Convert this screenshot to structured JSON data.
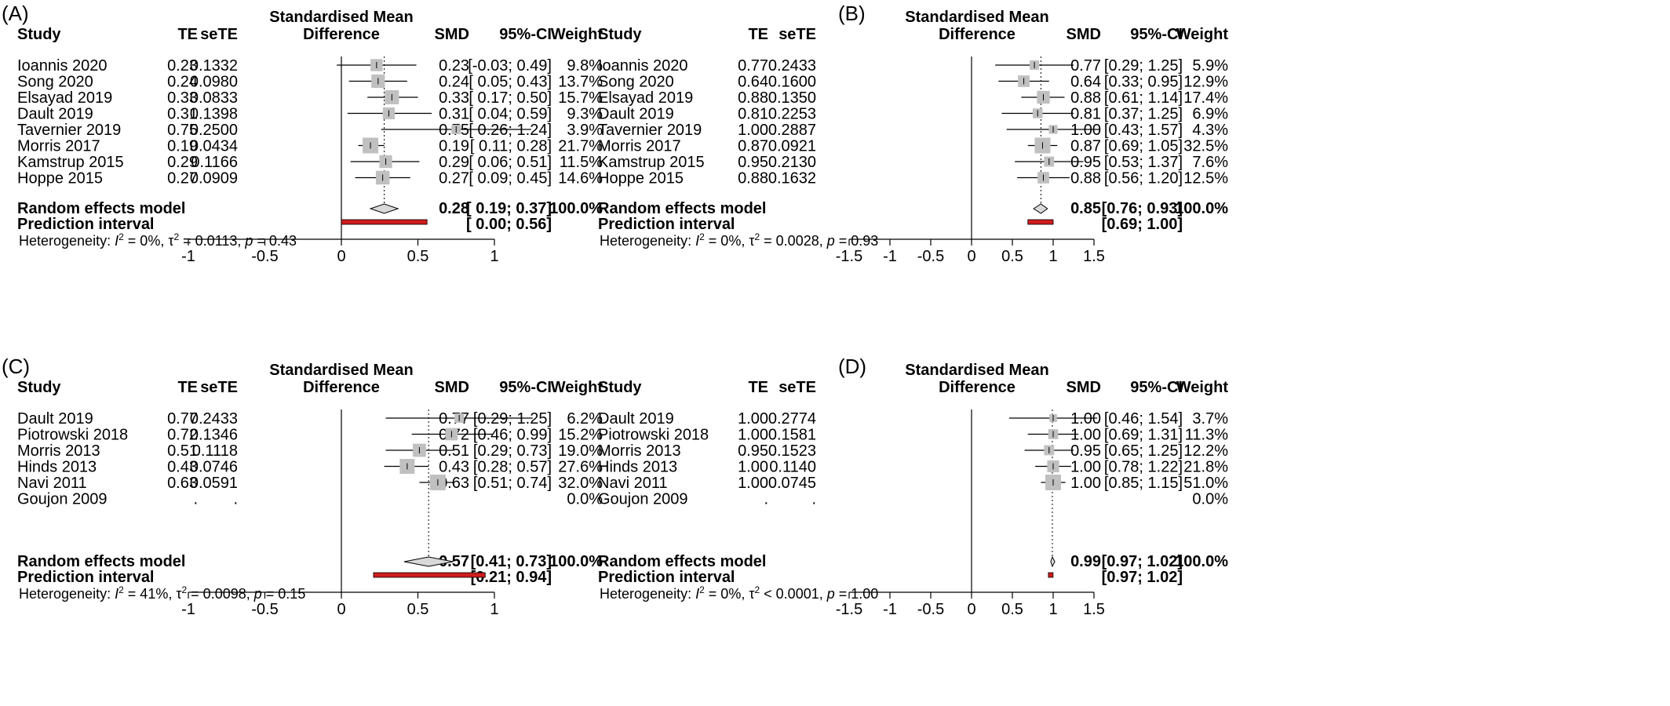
{
  "chart_data": [
    {
      "type": "forest",
      "panel_label": "(A)",
      "columns": {
        "study": "Study",
        "te": "TE",
        "sete": "seTE",
        "plot_title_1": "Standardised Mean",
        "plot_title_2": "Difference",
        "smd": "SMD",
        "ci": "95%-CI",
        "weight": "Weight"
      },
      "studies": [
        {
          "name": "Ioannis 2020",
          "te": "0.23",
          "sete": "0.1332",
          "smd": "0.23",
          "ci_text": "[-0.03; 0.49]",
          "weight": "9.8%",
          "est": 0.23,
          "lo": -0.03,
          "hi": 0.49,
          "w": 9.8
        },
        {
          "name": "Song 2020",
          "te": "0.24",
          "sete": "0.0980",
          "smd": "0.24",
          "ci_text": "[ 0.05; 0.43]",
          "weight": "13.7%",
          "est": 0.24,
          "lo": 0.05,
          "hi": 0.43,
          "w": 13.7
        },
        {
          "name": "Elsayad 2019",
          "te": "0.33",
          "sete": "0.0833",
          "smd": "0.33",
          "ci_text": "[ 0.17; 0.50]",
          "weight": "15.7%",
          "est": 0.33,
          "lo": 0.17,
          "hi": 0.5,
          "w": 15.7
        },
        {
          "name": "Dault 2019",
          "te": "0.31",
          "sete": "0.1398",
          "smd": "0.31",
          "ci_text": "[ 0.04; 0.59]",
          "weight": "9.3%",
          "est": 0.31,
          "lo": 0.04,
          "hi": 0.59,
          "w": 9.3
        },
        {
          "name": "Tavernier 2019",
          "te": "0.75",
          "sete": "0.2500",
          "smd": "0.75",
          "ci_text": "[ 0.26; 1.24]",
          "weight": "3.9%",
          "est": 0.75,
          "lo": 0.26,
          "hi": 1.24,
          "w": 3.9
        },
        {
          "name": "Morris 2017",
          "te": "0.19",
          "sete": "0.0434",
          "smd": "0.19",
          "ci_text": "[ 0.11; 0.28]",
          "weight": "21.7%",
          "est": 0.19,
          "lo": 0.11,
          "hi": 0.28,
          "w": 21.7
        },
        {
          "name": "Kamstrup 2015",
          "te": "0.29",
          "sete": "0.1166",
          "smd": "0.29",
          "ci_text": "[ 0.06; 0.51]",
          "weight": "11.5%",
          "est": 0.29,
          "lo": 0.06,
          "hi": 0.51,
          "w": 11.5
        },
        {
          "name": "Hoppe 2015",
          "te": "0.27",
          "sete": "0.0909",
          "smd": "0.27",
          "ci_text": "[ 0.09; 0.45]",
          "weight": "14.6%",
          "est": 0.27,
          "lo": 0.09,
          "hi": 0.45,
          "w": 14.6
        }
      ],
      "pooled": {
        "label": "Random effects model",
        "smd": "0.28",
        "ci_text": "[ 0.19; 0.37]",
        "weight": "100.0%",
        "est": 0.28,
        "lo": 0.19,
        "hi": 0.37
      },
      "prediction": {
        "label": "Prediction interval",
        "ci_text": "[ 0.00; 0.56]",
        "lo": 0.0,
        "hi": 0.56
      },
      "heterogeneity": {
        "prefix": "Heterogeneity: ",
        "i2": "= 0%, ",
        "tau2": "= 0.0113, ",
        "p": "= 0.43"
      },
      "xlim": [
        -1,
        1
      ],
      "ticks": [
        -1,
        -0.5,
        0,
        0.5,
        1
      ],
      "tick_labels": [
        "-1",
        "-0.5",
        "0",
        "0.5",
        "1"
      ]
    },
    {
      "type": "forest",
      "panel_label": "(B)",
      "columns": {
        "study": "Study",
        "te": "TE",
        "sete": "seTE",
        "plot_title_1": "Standardised Mean",
        "plot_title_2": "Difference",
        "smd": "SMD",
        "ci": "95%-CI",
        "weight": "Weight"
      },
      "studies": [
        {
          "name": "Ioannis 2020",
          "te": "0.77",
          "sete": "0.2433",
          "smd": "0.77",
          "ci_text": "[0.29; 1.25]",
          "weight": "5.9%",
          "est": 0.77,
          "lo": 0.29,
          "hi": 1.25,
          "w": 5.9
        },
        {
          "name": "Song 2020",
          "te": "0.64",
          "sete": "0.1600",
          "smd": "0.64",
          "ci_text": "[0.33; 0.95]",
          "weight": "12.9%",
          "est": 0.64,
          "lo": 0.33,
          "hi": 0.95,
          "w": 12.9
        },
        {
          "name": "Elsayad 2019",
          "te": "0.88",
          "sete": "0.1350",
          "smd": "0.88",
          "ci_text": "[0.61; 1.14]",
          "weight": "17.4%",
          "est": 0.88,
          "lo": 0.61,
          "hi": 1.14,
          "w": 17.4
        },
        {
          "name": "Dault 2019",
          "te": "0.81",
          "sete": "0.2253",
          "smd": "0.81",
          "ci_text": "[0.37; 1.25]",
          "weight": "6.9%",
          "est": 0.81,
          "lo": 0.37,
          "hi": 1.25,
          "w": 6.9
        },
        {
          "name": "Tavernier 2019",
          "te": "1.00",
          "sete": "0.2887",
          "smd": "1.00",
          "ci_text": "[0.43; 1.57]",
          "weight": "4.3%",
          "est": 1.0,
          "lo": 0.43,
          "hi": 1.57,
          "w": 4.3
        },
        {
          "name": "Morris 2017",
          "te": "0.87",
          "sete": "0.0921",
          "smd": "0.87",
          "ci_text": "[0.69; 1.05]",
          "weight": "32.5%",
          "est": 0.87,
          "lo": 0.69,
          "hi": 1.05,
          "w": 32.5
        },
        {
          "name": "Kamstrup 2015",
          "te": "0.95",
          "sete": "0.2130",
          "smd": "0.95",
          "ci_text": "[0.53; 1.37]",
          "weight": "7.6%",
          "est": 0.95,
          "lo": 0.53,
          "hi": 1.37,
          "w": 7.6
        },
        {
          "name": "Hoppe 2015",
          "te": "0.88",
          "sete": "0.1632",
          "smd": "0.88",
          "ci_text": "[0.56; 1.20]",
          "weight": "12.5%",
          "est": 0.88,
          "lo": 0.56,
          "hi": 1.2,
          "w": 12.5
        }
      ],
      "pooled": {
        "label": "Random effects model",
        "smd": "0.85",
        "ci_text": "[0.76; 0.93]",
        "weight": "100.0%",
        "est": 0.85,
        "lo": 0.76,
        "hi": 0.93
      },
      "prediction": {
        "label": "Prediction interval",
        "ci_text": "[0.69; 1.00]",
        "lo": 0.69,
        "hi": 1.0
      },
      "heterogeneity": {
        "prefix": "Heterogeneity: ",
        "i2": "= 0%, ",
        "tau2": "= 0.0028, ",
        "p": "= 0.93"
      },
      "xlim": [
        -1.5,
        1.5
      ],
      "ticks": [
        -1.5,
        -1,
        -0.5,
        0,
        0.5,
        1,
        1.5
      ],
      "tick_labels": [
        "-1.5",
        "-1",
        "-0.5",
        "0",
        "0.5",
        "1",
        "1.5"
      ]
    },
    {
      "type": "forest",
      "panel_label": "(C)",
      "columns": {
        "study": "Study",
        "te": "TE",
        "sete": "seTE",
        "plot_title_1": "Standardised Mean",
        "plot_title_2": "Difference",
        "smd": "SMD",
        "ci": "95%-CI",
        "weight": "Weight"
      },
      "studies": [
        {
          "name": "Dault 2019",
          "te": "0.77",
          "sete": "0.2433",
          "smd": "0.77",
          "ci_text": "[0.29; 1.25]",
          "weight": "6.2%",
          "est": 0.77,
          "lo": 0.29,
          "hi": 1.25,
          "w": 6.2
        },
        {
          "name": "Piotrowski 2018",
          "te": "0.72",
          "sete": "0.1346",
          "smd": "0.72",
          "ci_text": "[0.46; 0.99]",
          "weight": "15.2%",
          "est": 0.72,
          "lo": 0.46,
          "hi": 0.99,
          "w": 15.2
        },
        {
          "name": "Morris 2013",
          "te": "0.51",
          "sete": "0.1118",
          "smd": "0.51",
          "ci_text": "[0.29; 0.73]",
          "weight": "19.0%",
          "est": 0.51,
          "lo": 0.29,
          "hi": 0.73,
          "w": 19.0
        },
        {
          "name": "Hinds 2013",
          "te": "0.43",
          "sete": "0.0746",
          "smd": "0.43",
          "ci_text": "[0.28; 0.57]",
          "weight": "27.6%",
          "est": 0.43,
          "lo": 0.28,
          "hi": 0.57,
          "w": 27.6
        },
        {
          "name": "Navi 2011",
          "te": "0.63",
          "sete": "0.0591",
          "smd": "0.63",
          "ci_text": "[0.51; 0.74]",
          "weight": "32.0%",
          "est": 0.63,
          "lo": 0.51,
          "hi": 0.74,
          "w": 32.0
        },
        {
          "name": "Goujon 2009",
          "te": ".",
          "sete": ".",
          "smd": "",
          "ci_text": "",
          "weight": "0.0%",
          "est": null,
          "lo": null,
          "hi": null,
          "w": 0
        }
      ],
      "pooled": {
        "label": "Random effects model",
        "smd": "0.57",
        "ci_text": "[0.41; 0.73]",
        "weight": "100.0%",
        "est": 0.57,
        "lo": 0.41,
        "hi": 0.73
      },
      "prediction": {
        "label": "Prediction interval",
        "ci_text": "[0.21; 0.94]",
        "lo": 0.21,
        "hi": 0.94
      },
      "heterogeneity": {
        "prefix": "Heterogeneity: ",
        "i2": "= 41%, ",
        "tau2": "= 0.0098, ",
        "p": "= 0.15"
      },
      "xlim": [
        -1,
        1
      ],
      "ticks": [
        -1,
        -0.5,
        0,
        0.5,
        1
      ],
      "tick_labels": [
        "-1",
        "-0.5",
        "0",
        "0.5",
        "1"
      ]
    },
    {
      "type": "forest",
      "panel_label": "(D)",
      "columns": {
        "study": "Study",
        "te": "TE",
        "sete": "seTE",
        "plot_title_1": "Standardised Mean",
        "plot_title_2": "Difference",
        "smd": "SMD",
        "ci": "95%-CI",
        "weight": "Weight"
      },
      "studies": [
        {
          "name": "Dault 2019",
          "te": "1.00",
          "sete": "0.2774",
          "smd": "1.00",
          "ci_text": "[0.46; 1.54]",
          "weight": "3.7%",
          "est": 1.0,
          "lo": 0.46,
          "hi": 1.54,
          "w": 3.7
        },
        {
          "name": "Piotrowski 2018",
          "te": "1.00",
          "sete": "0.1581",
          "smd": "1.00",
          "ci_text": "[0.69; 1.31]",
          "weight": "11.3%",
          "est": 1.0,
          "lo": 0.69,
          "hi": 1.31,
          "w": 11.3
        },
        {
          "name": "Morris 2013",
          "te": "0.95",
          "sete": "0.1523",
          "smd": "0.95",
          "ci_text": "[0.65; 1.25]",
          "weight": "12.2%",
          "est": 0.95,
          "lo": 0.65,
          "hi": 1.25,
          "w": 12.2
        },
        {
          "name": "Hinds 2013",
          "te": "1.00",
          "sete": "0.1140",
          "smd": "1.00",
          "ci_text": "[0.78; 1.22]",
          "weight": "21.8%",
          "est": 1.0,
          "lo": 0.78,
          "hi": 1.22,
          "w": 21.8
        },
        {
          "name": "Navi 2011",
          "te": "1.00",
          "sete": "0.0745",
          "smd": "1.00",
          "ci_text": "[0.85; 1.15]",
          "weight": "51.0%",
          "est": 1.0,
          "lo": 0.85,
          "hi": 1.15,
          "w": 51.0
        },
        {
          "name": "Goujon 2009",
          "te": ".",
          "sete": ".",
          "smd": "",
          "ci_text": "",
          "weight": "0.0%",
          "est": null,
          "lo": null,
          "hi": null,
          "w": 0
        }
      ],
      "pooled": {
        "label": "Random effects model",
        "smd": "0.99",
        "ci_text": "[0.97; 1.02]",
        "weight": "100.0%",
        "est": 0.99,
        "lo": 0.97,
        "hi": 1.02
      },
      "prediction": {
        "label": "Prediction interval",
        "ci_text": "[0.97; 1.02]",
        "lo": 0.97,
        "hi": 1.02
      },
      "heterogeneity": {
        "prefix": "Heterogeneity: ",
        "i2": "= 0%, ",
        "tau2": "< 0.0001, ",
        "p": "= 1.00"
      },
      "xlim": [
        -1.5,
        1.5
      ],
      "ticks": [
        -1.5,
        -1,
        -0.5,
        0,
        0.5,
        1,
        1.5
      ],
      "tick_labels": [
        "-1.5",
        "-1",
        "-0.5",
        "0",
        "0.5",
        "1",
        "1.5"
      ]
    }
  ],
  "colors": {
    "square": "#c0c0c0",
    "prediction_bar": "#d01c1c",
    "line": "#000000",
    "diamond_fill": "#d9d9d9"
  }
}
